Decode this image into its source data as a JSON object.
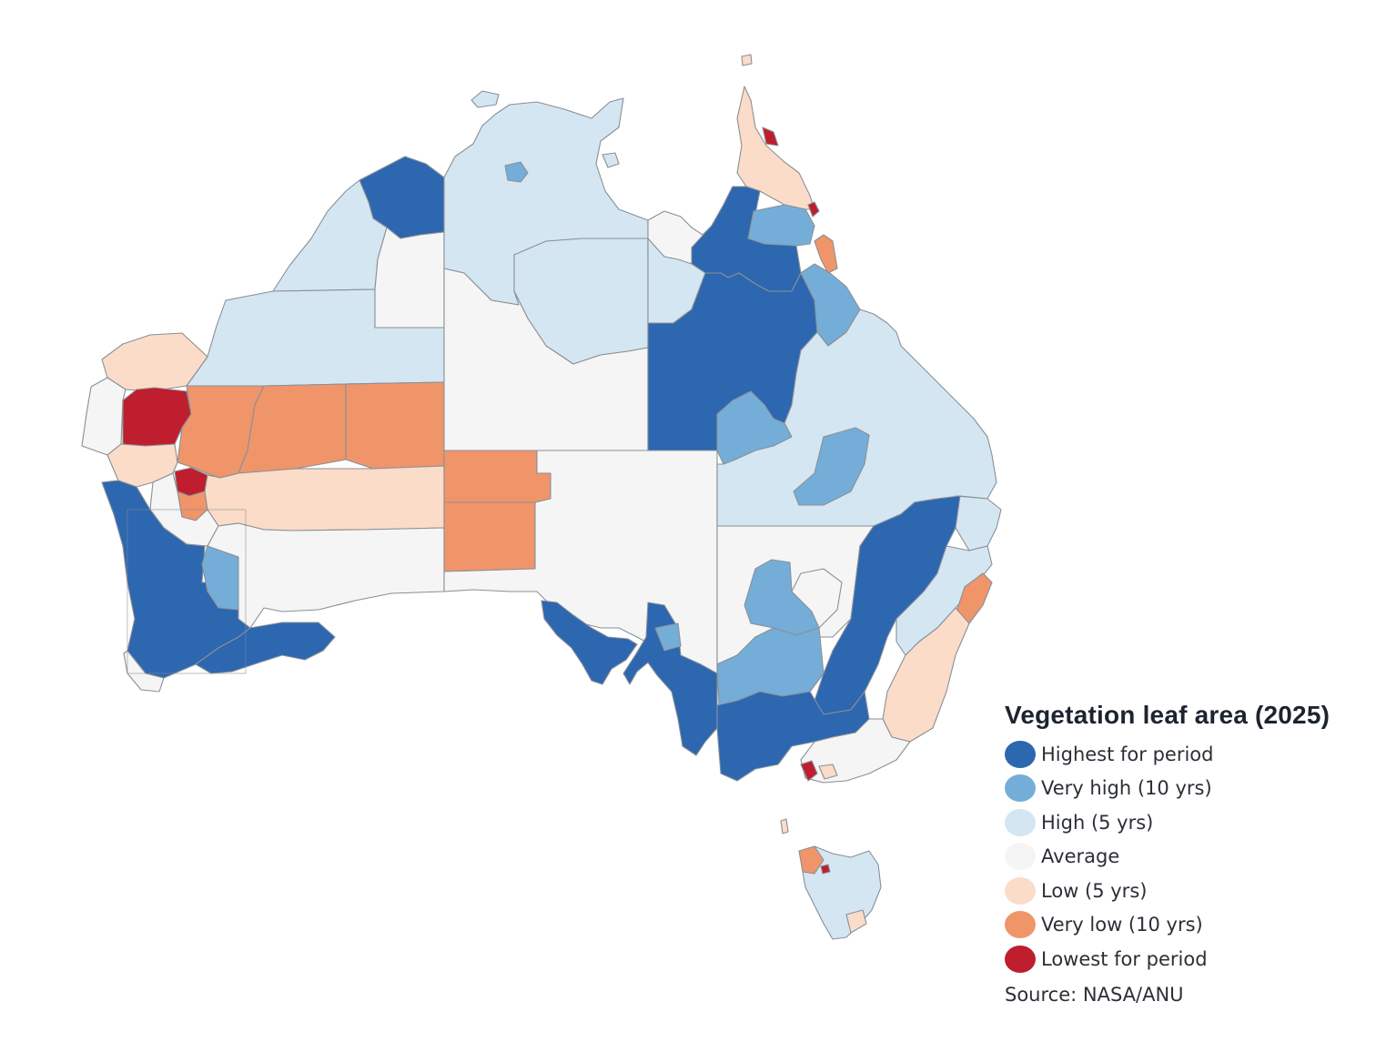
{
  "legend": {
    "title": "Vegetation leaf area (2025)",
    "items": [
      {
        "label": "Highest for period",
        "color": "#2c67b0"
      },
      {
        "label": "Very high (10 yrs)",
        "color": "#74aed8"
      },
      {
        "label": "High (5 yrs)",
        "color": "#d4e6f2"
      },
      {
        "label": "Average",
        "color": "#f5f5f5"
      },
      {
        "label": "Low (5 yrs)",
        "color": "#fbdcc8"
      },
      {
        "label": "Very low (10 yrs)",
        "color": "#f0956a"
      },
      {
        "label": "Lowest for period",
        "color": "#be1e2d"
      }
    ],
    "source": "Source: NASA/ANU"
  },
  "colors": {
    "highest": "#2c67b0",
    "very_high": "#74aed8",
    "high": "#d4e6f2",
    "average": "#f5f5f5",
    "low": "#fbdcc8",
    "very_low": "#f0956a",
    "lowest": "#be1e2d",
    "border": "#8a8f96"
  }
}
